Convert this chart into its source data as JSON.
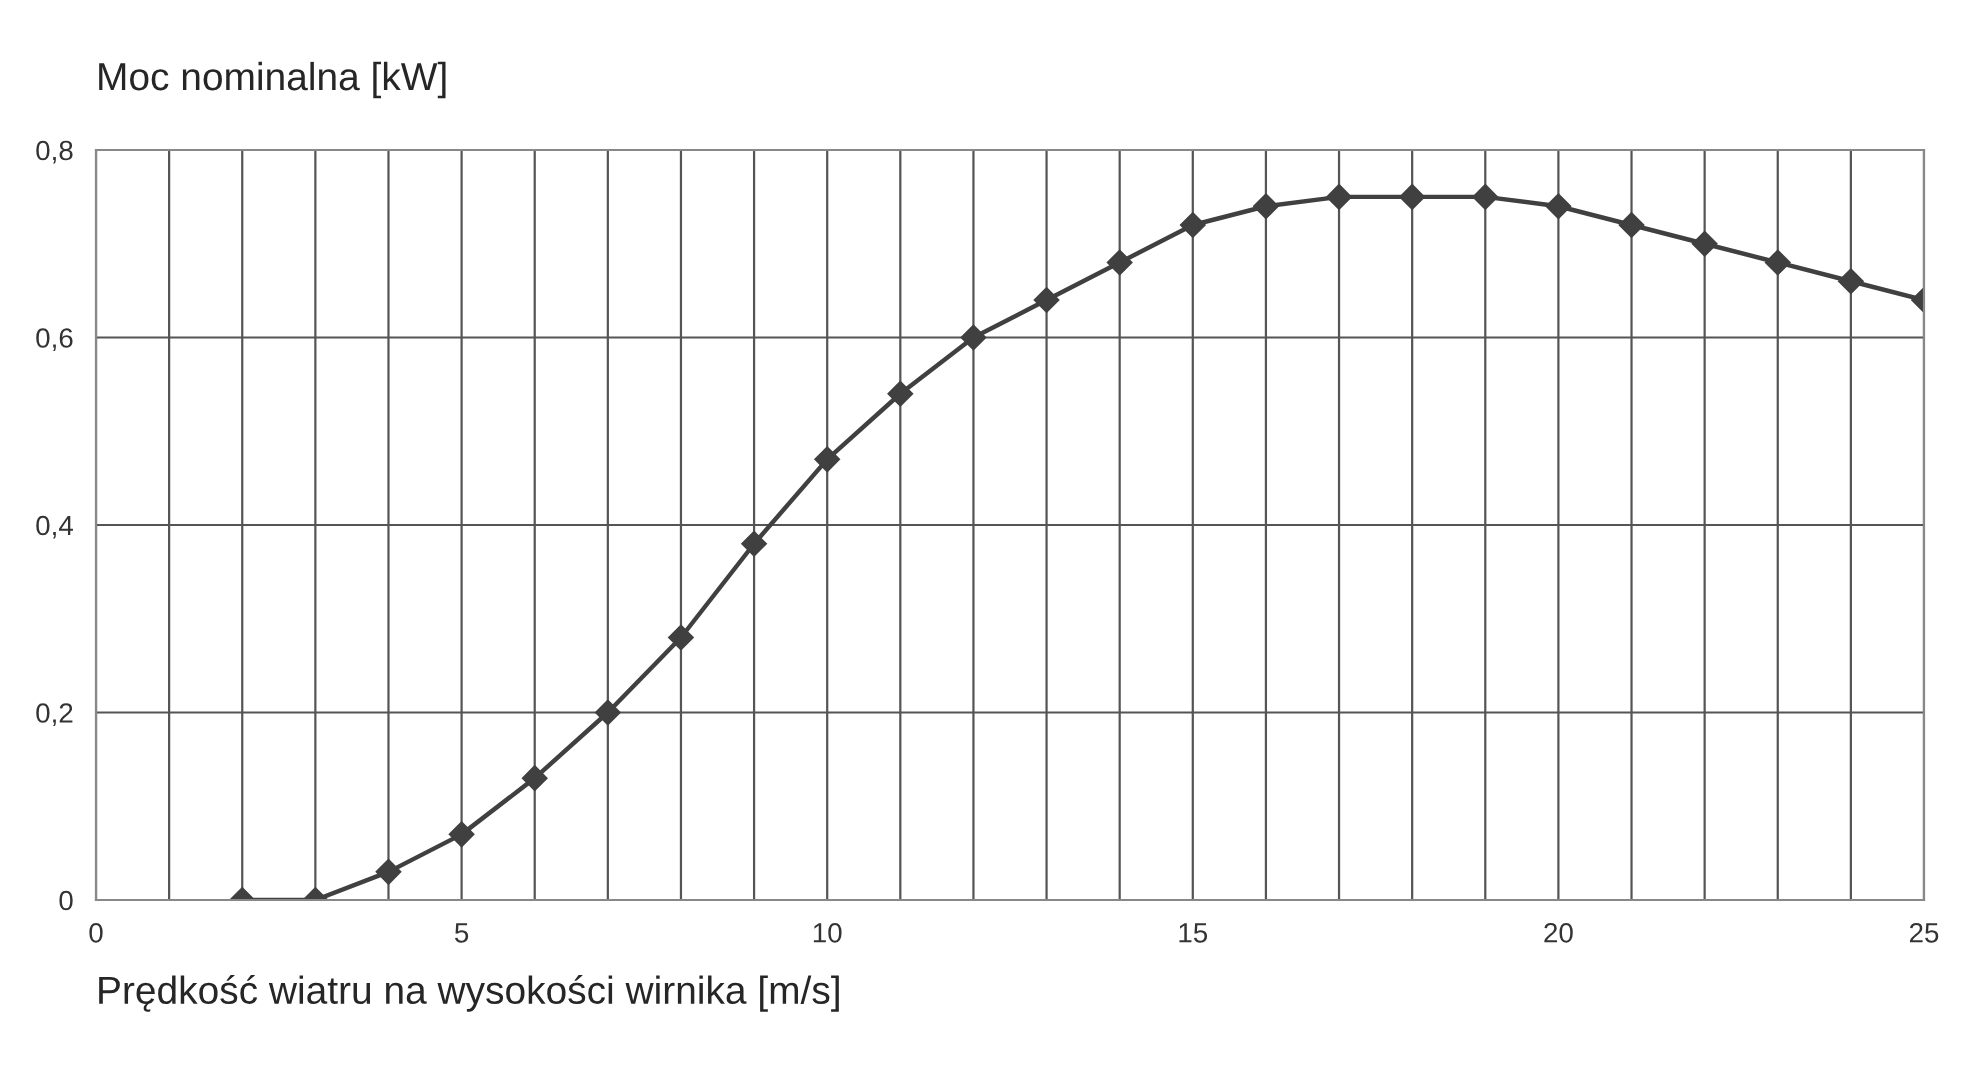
{
  "chart_data": {
    "type": "line",
    "ylabel": "Moc nominalna [kW]",
    "xlabel": "Prędkość wiatru na wysokości wirnika [m/s]",
    "x": [
      2,
      3,
      4,
      5,
      6,
      7,
      8,
      9,
      10,
      11,
      12,
      13,
      14,
      15,
      16,
      17,
      18,
      19,
      20,
      21,
      22,
      23,
      24,
      25
    ],
    "series": [
      {
        "color": "#404040",
        "values": [
          0,
          0,
          0.03,
          0.07,
          0.13,
          0.2,
          0.28,
          0.38,
          0.47,
          0.54,
          0.6,
          0.64,
          0.68,
          0.72,
          0.74,
          0.75,
          0.75,
          0.75,
          0.74,
          0.72,
          0.7,
          0.68,
          0.66,
          0.64
        ]
      }
    ],
    "xlim": [
      0,
      25
    ],
    "xticks": [
      0,
      {
        "value": 1,
        "label": null
      },
      {
        "value": 2,
        "label": null
      },
      {
        "value": 3,
        "label": null
      },
      {
        "value": 4,
        "label": null
      },
      5,
      {
        "value": 6,
        "label": null
      },
      {
        "value": 7,
        "label": null
      },
      {
        "value": 8,
        "label": null
      },
      {
        "value": 9,
        "label": null
      },
      10,
      {
        "value": 11,
        "label": null
      },
      {
        "value": 12,
        "label": null
      },
      {
        "value": 13,
        "label": null
      },
      {
        "value": 14,
        "label": null
      },
      15,
      {
        "value": 16,
        "label": null
      },
      {
        "value": 17,
        "label": null
      },
      {
        "value": 18,
        "label": null
      },
      {
        "value": 19,
        "label": null
      },
      20,
      {
        "value": 21,
        "label": null
      },
      {
        "value": 22,
        "label": null
      },
      {
        "value": 23,
        "label": null
      },
      {
        "value": 24,
        "label": null
      },
      25
    ],
    "ylim": [
      0,
      0.8
    ],
    "yticks": [
      0,
      {
        "value": 0.2,
        "label": "0,2"
      },
      {
        "value": 0.4,
        "label": "0,4"
      },
      {
        "value": 0.6,
        "label": "0,6"
      },
      {
        "value": 0.8,
        "label": "0,8"
      }
    ],
    "grid": true,
    "marker": "diamond",
    "line_style": "solid",
    "legend": false
  }
}
